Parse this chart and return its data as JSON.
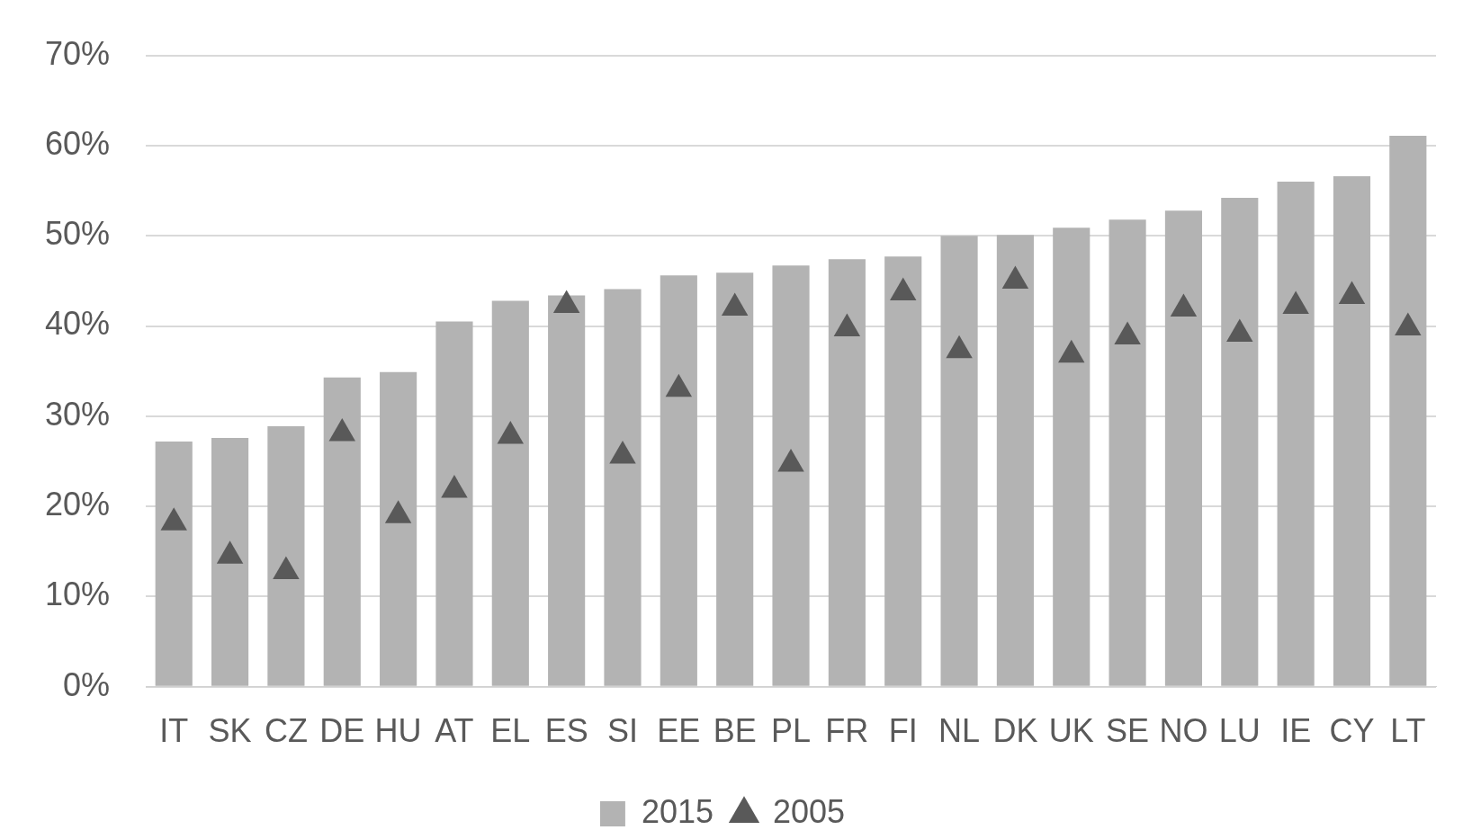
{
  "chart_data": {
    "type": "bar",
    "categories": [
      "IT",
      "SK",
      "CZ",
      "DE",
      "HU",
      "AT",
      "EL",
      "ES",
      "SI",
      "EE",
      "BE",
      "PL",
      "FR",
      "FI",
      "NL",
      "DK",
      "UK",
      "SE",
      "NO",
      "LU",
      "IE",
      "CY",
      "LT"
    ],
    "series": [
      {
        "name": "2015",
        "color": "#b3b3b3",
        "values": [
          27.2,
          27.6,
          28.9,
          34.3,
          34.9,
          40.5,
          42.8,
          43.4,
          44.1,
          45.6,
          45.9,
          46.7,
          47.4,
          47.7,
          50.0,
          50.1,
          50.9,
          51.8,
          52.8,
          54.2,
          56.0,
          56.6,
          61.1
        ]
      },
      {
        "name": "2005",
        "type": "scatter",
        "marker": "triangle",
        "color": "#595959",
        "values": [
          18.2,
          14.5,
          12.8,
          28.1,
          19.0,
          21.8,
          27.8,
          42.3,
          25.6,
          33.0,
          42.0,
          24.7,
          39.7,
          43.7,
          37.3,
          45.0,
          36.8,
          38.8,
          41.9,
          39.1,
          42.2,
          43.3,
          39.8
        ]
      }
    ],
    "ylim": [
      0,
      70
    ],
    "yticks": [
      {
        "value": 0,
        "label": "0%"
      },
      {
        "value": 10,
        "label": "10%"
      },
      {
        "value": 20,
        "label": "20%"
      },
      {
        "value": 30,
        "label": "30%"
      },
      {
        "value": 40,
        "label": "40%"
      },
      {
        "value": 50,
        "label": "50%"
      },
      {
        "value": 60,
        "label": "60%"
      },
      {
        "value": 70,
        "label": "70%"
      }
    ],
    "grid": "y",
    "legend": "bottom"
  }
}
